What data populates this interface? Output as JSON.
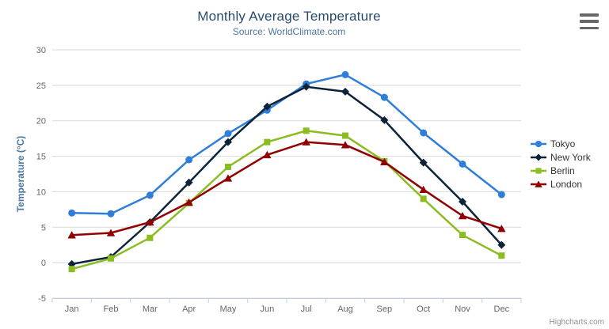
{
  "header": {
    "title": "Monthly Average Temperature",
    "subtitle": "Source: WorldClimate.com"
  },
  "icons": {
    "export_menu": "hamburger-menu-icon"
  },
  "credit": "Highcharts.com",
  "colors": {
    "title": "#274b6d",
    "subtitle": "#4d759e",
    "axis_label": "#666666",
    "axis_line": "#c0d0e0",
    "gridline": "#d8d8d8",
    "y_axis_title": "#4977a3",
    "legend_text": "#333333",
    "credit": "#909090"
  },
  "chart_data": {
    "type": "line",
    "title": "Monthly Average Temperature",
    "subtitle": "Source: WorldClimate.com",
    "categories": [
      "Jan",
      "Feb",
      "Mar",
      "Apr",
      "May",
      "Jun",
      "Jul",
      "Aug",
      "Sep",
      "Oct",
      "Nov",
      "Dec"
    ],
    "series": [
      {
        "name": "Tokyo",
        "color": "#2f7ed8",
        "marker": "circle",
        "values": [
          7.0,
          6.9,
          9.5,
          14.5,
          18.2,
          21.5,
          25.2,
          26.5,
          23.3,
          18.3,
          13.9,
          9.6
        ]
      },
      {
        "name": "New York",
        "color": "#0d233a",
        "marker": "diamond",
        "values": [
          -0.2,
          0.8,
          5.7,
          11.3,
          17.0,
          22.0,
          24.8,
          24.1,
          20.1,
          14.1,
          8.6,
          2.5
        ]
      },
      {
        "name": "Berlin",
        "color": "#8bbc21",
        "marker": "square",
        "values": [
          -0.9,
          0.6,
          3.5,
          8.4,
          13.5,
          17.0,
          18.6,
          17.9,
          14.3,
          9.0,
          3.9,
          1.0
        ]
      },
      {
        "name": "London",
        "color": "#910000",
        "marker": "triangle-up",
        "values": [
          3.9,
          4.2,
          5.7,
          8.5,
          11.9,
          15.2,
          17.0,
          16.6,
          14.2,
          10.3,
          6.6,
          4.8
        ]
      }
    ],
    "xlabel": "",
    "ylabel": "Temperature (°C)",
    "ylim": [
      -5,
      30
    ],
    "yticks": [
      -5,
      0,
      5,
      10,
      15,
      20,
      25,
      30
    ],
    "grid": true,
    "legend_position": "right"
  }
}
